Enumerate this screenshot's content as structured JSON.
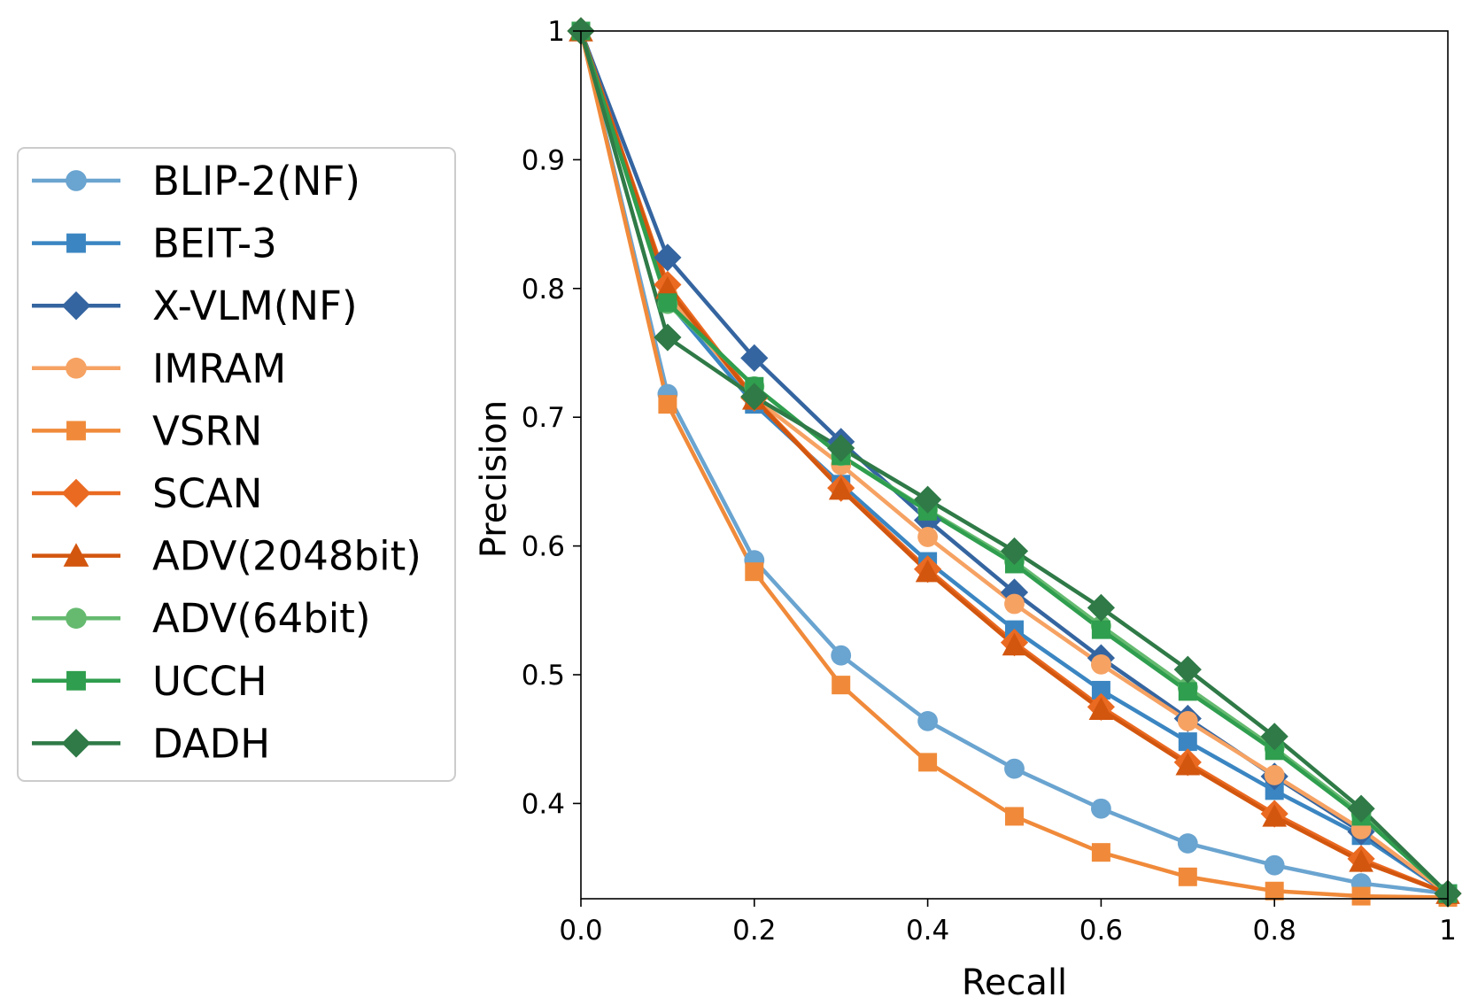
{
  "chart_data": {
    "type": "line",
    "xlabel": "Recall",
    "ylabel": "Precision",
    "xlim": [
      0,
      1
    ],
    "ylim": [
      0.326,
      1
    ],
    "x_ticks": [
      0,
      0.2,
      0.4,
      0.6,
      0.8,
      1
    ],
    "x_tick_labels": [
      "0.0",
      "0.2",
      "0.4",
      "0.6",
      "0.8",
      "1"
    ],
    "y_ticks": [
      0.4,
      0.5,
      0.6,
      0.7,
      0.8,
      0.9,
      1
    ],
    "y_tick_labels": [
      "0.4",
      "0.5",
      "0.6",
      "0.7",
      "0.8",
      "0.9",
      "1"
    ],
    "grid": false,
    "legend_position": "outside-left",
    "x": [
      0,
      0.1,
      0.2,
      0.3,
      0.4,
      0.5,
      0.6,
      0.7,
      0.8,
      0.9,
      1.0
    ],
    "series": [
      {
        "name": "BLIP-2(NF)",
        "color": "#6aa4d0",
        "marker": "circle",
        "values": [
          1.0,
          0.718,
          0.589,
          0.515,
          0.464,
          0.427,
          0.396,
          0.369,
          0.352,
          0.338,
          0.33
        ]
      },
      {
        "name": "BEIT-3",
        "color": "#3b86c2",
        "marker": "square",
        "values": [
          1.0,
          0.79,
          0.71,
          0.648,
          0.588,
          0.535,
          0.488,
          0.448,
          0.41,
          0.375,
          0.33
        ]
      },
      {
        "name": "X-VLM(NF)",
        "color": "#3565a0",
        "marker": "diamond",
        "values": [
          1.0,
          0.824,
          0.746,
          0.681,
          0.62,
          0.564,
          0.513,
          0.466,
          0.421,
          0.378,
          0.33
        ]
      },
      {
        "name": "IMRAM",
        "color": "#f6a263",
        "marker": "circle",
        "values": [
          1.0,
          0.795,
          0.715,
          0.663,
          0.607,
          0.555,
          0.508,
          0.464,
          0.422,
          0.38,
          0.33
        ]
      },
      {
        "name": "VSRN",
        "color": "#f08a3a",
        "marker": "square",
        "values": [
          1.0,
          0.71,
          0.58,
          0.492,
          0.432,
          0.39,
          0.362,
          0.343,
          0.332,
          0.328,
          0.327
        ]
      },
      {
        "name": "SCAN",
        "color": "#ea6a22",
        "marker": "diamond",
        "values": [
          1.0,
          0.803,
          0.715,
          0.645,
          0.582,
          0.525,
          0.475,
          0.432,
          0.392,
          0.357,
          0.33
        ]
      },
      {
        "name": "ADV(2048bit)",
        "color": "#d3560f",
        "marker": "triangle",
        "values": [
          1.0,
          0.8,
          0.714,
          0.644,
          0.58,
          0.523,
          0.473,
          0.43,
          0.39,
          0.355,
          0.33
        ]
      },
      {
        "name": "ADV(64bit)",
        "color": "#66ba70",
        "marker": "circle",
        "values": [
          1.0,
          0.788,
          0.724,
          0.67,
          0.628,
          0.588,
          0.538,
          0.49,
          0.443,
          0.392,
          0.33
        ]
      },
      {
        "name": "UCCH",
        "color": "#2f9e4e",
        "marker": "square",
        "values": [
          1.0,
          0.789,
          0.724,
          0.67,
          0.627,
          0.586,
          0.535,
          0.487,
          0.441,
          0.39,
          0.33
        ]
      },
      {
        "name": "DADH",
        "color": "#2f7a47",
        "marker": "diamond",
        "values": [
          1.0,
          0.762,
          0.716,
          0.676,
          0.636,
          0.596,
          0.552,
          0.504,
          0.452,
          0.396,
          0.33
        ]
      }
    ]
  }
}
